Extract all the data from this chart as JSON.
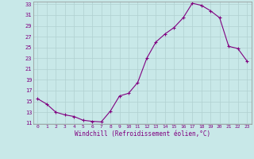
{
  "x": [
    0,
    1,
    2,
    3,
    4,
    5,
    6,
    7,
    8,
    9,
    10,
    11,
    12,
    13,
    14,
    15,
    16,
    17,
    18,
    19,
    20,
    21,
    22,
    23
  ],
  "y": [
    15.5,
    14.5,
    13.0,
    12.5,
    12.2,
    11.5,
    11.3,
    11.2,
    13.2,
    16.0,
    16.5,
    18.5,
    23.0,
    26.0,
    27.5,
    28.7,
    30.5,
    33.2,
    32.8,
    31.8,
    30.5,
    25.2,
    24.8,
    22.5
  ],
  "line_color": "#800080",
  "marker": "+",
  "bg_color": "#c8e8e8",
  "grid_color": "#b0d0d0",
  "tick_color": "#800080",
  "xlabel": "Windchill (Refroidissement éolien,°C)",
  "ylim_min": 11,
  "ylim_max": 33,
  "yticks": [
    11,
    13,
    15,
    17,
    19,
    21,
    23,
    25,
    27,
    29,
    31,
    33
  ],
  "xticks": [
    0,
    1,
    2,
    3,
    4,
    5,
    6,
    7,
    8,
    9,
    10,
    11,
    12,
    13,
    14,
    15,
    16,
    17,
    18,
    19,
    20,
    21,
    22,
    23
  ]
}
